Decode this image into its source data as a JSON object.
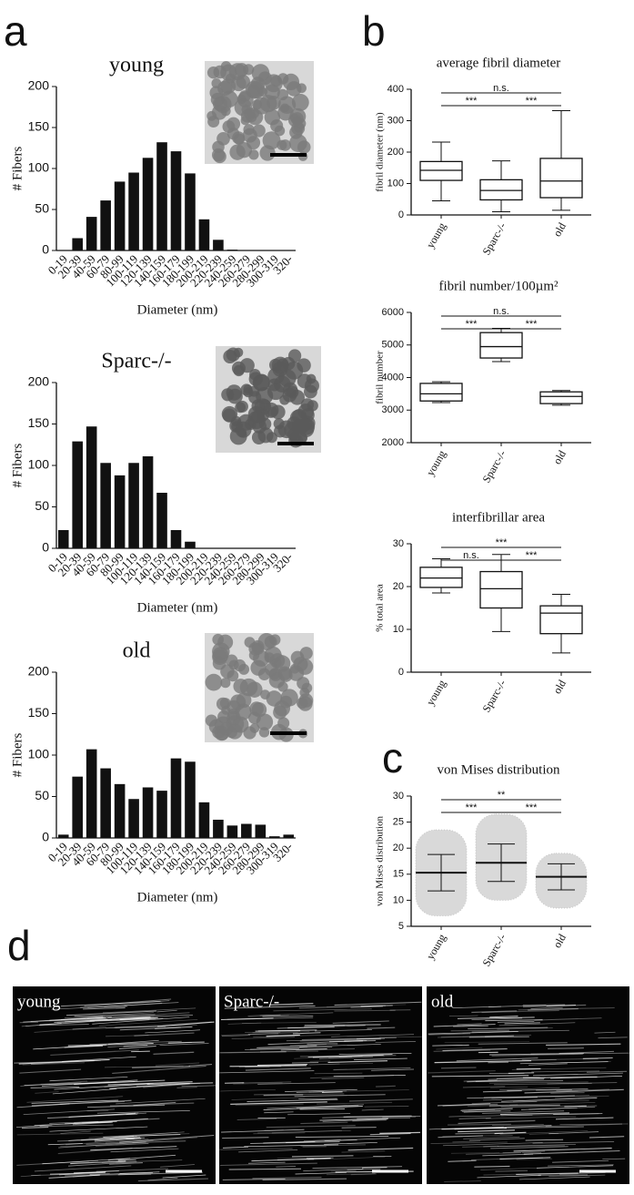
{
  "panels": [
    "a",
    "b",
    "c",
    "d"
  ],
  "chart_data": [
    {
      "type": "bar",
      "title": "young",
      "y_label": "# Fibers",
      "x_label": "Diameter (nm)",
      "color": "#111111",
      "categories": [
        "0-19",
        "20-39",
        "40-59",
        "60-79",
        "80-99",
        "100-119",
        "120-139",
        "140-159",
        "160-179",
        "180-199",
        "200-219",
        "220-239",
        "240-259",
        "260-279",
        "280-299",
        "300-319",
        "320-"
      ],
      "values": [
        0,
        15,
        41,
        61,
        84,
        95,
        113,
        132,
        121,
        94,
        38,
        13,
        1,
        0,
        0,
        0,
        0
      ],
      "ylim": [
        0,
        200
      ],
      "yticks": [
        0,
        50,
        100,
        150,
        200
      ]
    },
    {
      "type": "bar",
      "title": "Sparc-/-",
      "y_label": "# Fibers",
      "x_label": "Diameter (nm)",
      "color": "#111111",
      "categories": [
        "0-19",
        "20-39",
        "40-59",
        "60-79",
        "80-99",
        "100-119",
        "120-139",
        "140-159",
        "160-179",
        "180-199",
        "200-219",
        "220-239",
        "240-259",
        "260-279",
        "280-299",
        "300-319",
        "320-"
      ],
      "values": [
        22,
        129,
        147,
        103,
        88,
        103,
        111,
        67,
        22,
        8,
        0,
        0,
        0,
        0,
        0,
        0,
        0
      ],
      "ylim": [
        0,
        200
      ],
      "yticks": [
        0,
        50,
        100,
        150,
        200
      ]
    },
    {
      "type": "bar",
      "title": "old",
      "y_label": "# Fibers",
      "x_label": "Diameter (nm)",
      "color": "#111111",
      "categories": [
        "0-19",
        "20-39",
        "40-59",
        "60-79",
        "80-99",
        "100-119",
        "120-139",
        "140-159",
        "160-179",
        "180-199",
        "200-219",
        "220-239",
        "240-259",
        "260-279",
        "280-299",
        "300-319",
        "320-"
      ],
      "values": [
        4,
        74,
        107,
        84,
        65,
        47,
        61,
        57,
        96,
        92,
        43,
        22,
        15,
        17,
        16,
        2,
        4
      ],
      "ylim": [
        0,
        200
      ],
      "yticks": [
        0,
        50,
        100,
        150,
        200
      ]
    },
    {
      "type": "box",
      "title": "average fibril diameter",
      "y_label": "fibril diameter (nm)",
      "categories": [
        "young",
        "Sparc-/-",
        "old"
      ],
      "boxes": [
        [
          45,
          110,
          142,
          170,
          232
        ],
        [
          10,
          48,
          78,
          112,
          172
        ],
        [
          15,
          55,
          108,
          180,
          332
        ]
      ],
      "annotations": [
        "n.s.",
        "***",
        "***"
      ],
      "ylim": [
        0,
        400
      ],
      "yticks": [
        0,
        100,
        200,
        300,
        400
      ]
    },
    {
      "type": "box",
      "title": "fibril number/100µm²",
      "y_label": "fibril number",
      "categories": [
        "young",
        "Sparc-/-",
        "old"
      ],
      "boxes": [
        [
          3230,
          3280,
          3500,
          3820,
          3870
        ],
        [
          4490,
          4600,
          4950,
          5380,
          5510
        ],
        [
          3150,
          3200,
          3420,
          3560,
          3600
        ]
      ],
      "annotations": [
        "n.s.",
        "***",
        "***"
      ],
      "ylim": [
        2000,
        6000
      ],
      "yticks": [
        2000,
        3000,
        4000,
        5000,
        6000
      ]
    },
    {
      "type": "box",
      "title": "interfibrillar area",
      "y_label": "% total area",
      "categories": [
        "young",
        "Sparc-/-",
        "old"
      ],
      "boxes": [
        [
          18.5,
          19.8,
          22,
          24.5,
          26.5
        ],
        [
          9.5,
          15,
          19.5,
          23.5,
          27.5
        ],
        [
          4.5,
          9,
          13.8,
          15.5,
          18.2
        ]
      ],
      "annotations": [
        "***",
        "n.s.",
        "***"
      ],
      "ylim": [
        0,
        30
      ],
      "yticks": [
        0,
        10,
        20,
        30
      ]
    },
    {
      "type": "dotplot",
      "title": "von Mises distribution",
      "y_label": "von Mises distribution",
      "categories": [
        "young",
        "Sparc-/-",
        "old"
      ],
      "means": [
        15.3,
        17.2,
        14.5
      ],
      "sd": [
        3.5,
        3.6,
        2.5
      ],
      "min": [
        7,
        10,
        8.5
      ],
      "max": [
        23.5,
        26.5,
        19
      ],
      "annotations": [
        "**",
        "***",
        "***"
      ],
      "ylim": [
        5,
        30
      ],
      "yticks": [
        5,
        10,
        15,
        20,
        25,
        30
      ]
    }
  ],
  "images": [
    "young",
    "Sparc-/-",
    "old"
  ]
}
